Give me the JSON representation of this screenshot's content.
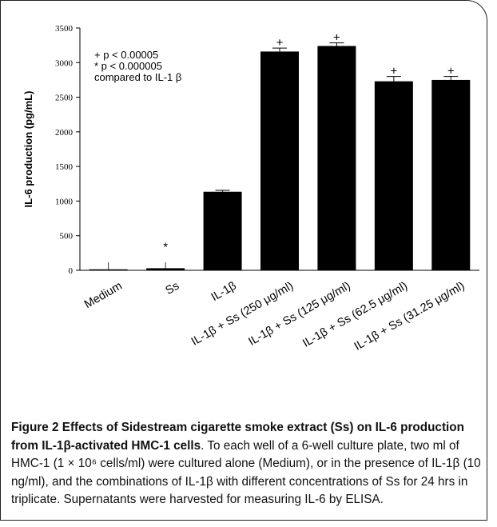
{
  "chart_data": {
    "type": "bar",
    "ylabel": "IL-6 production (pg/mL)",
    "ylim": [
      0,
      3500
    ],
    "yticks": [
      0,
      500,
      1000,
      1500,
      2000,
      2500,
      3000,
      3500
    ],
    "categories": [
      "Medium",
      "Ss",
      "IL-1β",
      "IL-1β + Ss (250 μg/ml)",
      "IL-1β + Ss (125 μg/ml)",
      "IL-1β + Ss (62.5 μg/ml)",
      "IL-1β + Ss (31.25 μg/ml)"
    ],
    "values": [
      5,
      30,
      1135,
      3160,
      3240,
      2730,
      2750
    ],
    "errors": [
      0,
      0,
      20,
      50,
      45,
      70,
      50
    ],
    "markers": [
      "",
      "*",
      "",
      "+",
      "+",
      "+",
      "+"
    ],
    "bar_color": "#000000",
    "legend_lines": [
      "+ p < 0.00005",
      "* p < 0.000005",
      "compared to IL-1 β"
    ]
  },
  "caption": {
    "title": "Figure 2 Effects of Sidestream cigarette smoke extract (Ss) on IL-6 production from IL-1β-activated HMC-1 cells",
    "body": ". To each well of a 6-well culture plate, two ml of HMC-1 (1 × 10⁶ cells/ml) were cultured alone (Medium), or in the presence of IL-1β (10 ng/ml), and the combinations of IL-1β with different concentrations of Ss for 24 hrs in triplicate. Supernatants were harvested for measuring IL-6 by ELISA."
  }
}
